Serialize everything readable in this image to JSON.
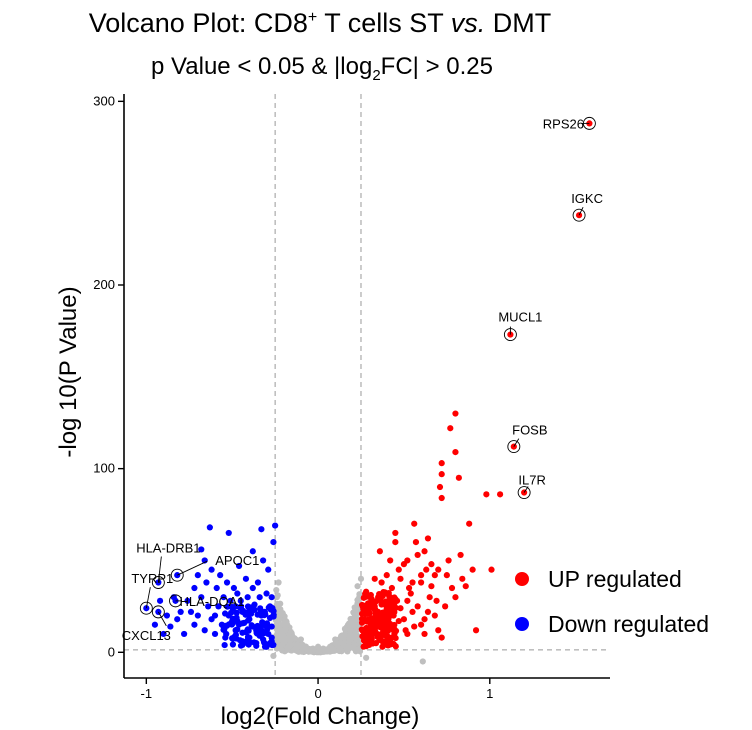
{
  "chart_data": {
    "type": "scatter",
    "title_pre": "Volcano Plot: CD8",
    "title_sup": "+",
    "title_mid": " T cells ST ",
    "title_em": "vs.",
    "title_post": " DMT",
    "subtitle_pre": "p Value  <  0.05 & |log",
    "subtitle_sub": "2",
    "subtitle_post": "FC|  >  0.25",
    "xlabel": "log2(Fold Change)",
    "ylabel": "-log 10(P Value)",
    "xlim": [
      -1.13,
      1.7
    ],
    "ylim": [
      -14,
      304
    ],
    "x_ticks": [
      -1,
      0,
      1
    ],
    "x_tick_labels": [
      "-1",
      "0",
      "1"
    ],
    "y_ticks": [
      0,
      100,
      200,
      300
    ],
    "y_tick_labels": [
      "0",
      "100",
      "200",
      "300"
    ],
    "thresholds": {
      "fc": 0.25,
      "p_log": 1.3
    },
    "colors": {
      "up": "#ff0000",
      "down": "#0000ff",
      "ns": "#bfbfbf",
      "threshold_line": "#999999"
    },
    "legend": {
      "position": "right",
      "items": [
        {
          "label": "UP regulated",
          "color": "#ff0000"
        },
        {
          "label": "Down regulated",
          "color": "#0000ff"
        }
      ]
    },
    "labeled_genes": [
      {
        "gene": "RPS26",
        "x": 1.58,
        "y": 288,
        "group": "up"
      },
      {
        "gene": "IGKC",
        "x": 1.52,
        "y": 238,
        "group": "up"
      },
      {
        "gene": "MUCL1",
        "x": 1.12,
        "y": 173,
        "group": "up"
      },
      {
        "gene": "FOSB",
        "x": 1.14,
        "y": 112,
        "group": "up"
      },
      {
        "gene": "IL7R",
        "x": 1.2,
        "y": 87,
        "group": "up"
      },
      {
        "gene": "HLA-DRB1",
        "x": -0.93,
        "y": 38,
        "group": "down"
      },
      {
        "gene": "APOC1",
        "x": -0.82,
        "y": 42,
        "group": "down"
      },
      {
        "gene": "TYRP1",
        "x": -1.0,
        "y": 24,
        "group": "down"
      },
      {
        "gene": "HLA-DQA1",
        "x": -0.83,
        "y": 28,
        "group": "down"
      },
      {
        "gene": "CXCL13",
        "x": -0.93,
        "y": 22,
        "group": "down"
      }
    ],
    "up_points": [
      [
        0.8,
        130
      ],
      [
        0.77,
        122
      ],
      [
        0.8,
        109
      ],
      [
        0.72,
        103
      ],
      [
        0.82,
        95
      ],
      [
        0.72,
        97
      ],
      [
        0.71,
        90
      ],
      [
        0.72,
        84
      ],
      [
        1.06,
        86
      ],
      [
        0.98,
        86
      ],
      [
        0.88,
        70
      ],
      [
        1.01,
        45
      ],
      [
        0.83,
        53
      ],
      [
        0.7,
        45
      ],
      [
        0.68,
        42
      ],
      [
        0.62,
        55
      ],
      [
        0.57,
        60
      ],
      [
        0.55,
        38
      ],
      [
        0.5,
        48
      ],
      [
        0.47,
        45
      ],
      [
        0.45,
        65
      ],
      [
        0.56,
        70
      ],
      [
        0.45,
        60
      ],
      [
        0.58,
        53
      ],
      [
        0.63,
        45
      ],
      [
        0.66,
        36
      ],
      [
        0.75,
        42
      ],
      [
        0.65,
        30
      ],
      [
        0.6,
        38
      ],
      [
        0.52,
        28
      ],
      [
        0.48,
        24
      ],
      [
        0.43,
        35
      ],
      [
        0.4,
        42
      ],
      [
        0.37,
        38
      ],
      [
        0.35,
        30
      ],
      [
        0.33,
        25
      ],
      [
        0.3,
        18
      ],
      [
        0.28,
        13
      ],
      [
        0.27,
        8
      ],
      [
        0.29,
        23
      ],
      [
        0.32,
        10
      ],
      [
        0.38,
        20
      ],
      [
        0.41,
        15
      ],
      [
        0.44,
        12
      ],
      [
        0.5,
        18
      ],
      [
        0.55,
        22
      ],
      [
        0.6,
        15
      ],
      [
        0.7,
        12
      ],
      [
        0.72,
        8
      ],
      [
        0.78,
        35
      ],
      [
        0.69,
        28
      ],
      [
        0.64,
        22
      ],
      [
        0.54,
        32
      ],
      [
        0.46,
        28
      ],
      [
        0.42,
        50
      ],
      [
        0.38,
        10
      ],
      [
        0.34,
        15
      ],
      [
        0.31,
        28
      ],
      [
        0.28,
        33
      ],
      [
        0.26,
        12
      ],
      [
        0.27,
        18
      ],
      [
        0.3,
        6
      ],
      [
        0.36,
        8
      ],
      [
        0.52,
        10
      ],
      [
        0.58,
        25
      ],
      [
        0.62,
        18
      ],
      [
        0.68,
        20
      ],
      [
        0.74,
        25
      ],
      [
        0.8,
        30
      ],
      [
        0.84,
        40
      ],
      [
        0.9,
        45
      ],
      [
        0.36,
        55
      ],
      [
        0.4,
        32
      ],
      [
        0.48,
        40
      ],
      [
        0.44,
        20
      ],
      [
        0.33,
        40
      ],
      [
        0.29,
        9
      ],
      [
        0.26,
        25
      ],
      [
        0.31,
        14
      ],
      [
        0.35,
        22
      ],
      [
        0.39,
        26
      ],
      [
        0.43,
        8
      ],
      [
        0.51,
        12
      ],
      [
        0.56,
        14
      ],
      [
        0.62,
        10
      ],
      [
        0.47,
        17
      ],
      [
        0.53,
        35
      ],
      [
        0.6,
        42
      ],
      [
        0.66,
        48
      ],
      [
        0.76,
        50
      ],
      [
        0.86,
        36
      ],
      [
        0.92,
        12
      ],
      [
        0.64,
        62
      ],
      [
        0.52,
        50
      ],
      [
        0.4,
        24
      ],
      [
        0.37,
        16
      ]
    ],
    "down_points": [
      [
        -0.63,
        68
      ],
      [
        -0.52,
        65
      ],
      [
        -0.33,
        67
      ],
      [
        -0.25,
        69
      ],
      [
        -0.26,
        60
      ],
      [
        -0.32,
        50
      ],
      [
        -0.38,
        55
      ],
      [
        -0.68,
        56
      ],
      [
        -0.66,
        50
      ],
      [
        -0.62,
        45
      ],
      [
        -0.57,
        42
      ],
      [
        -0.53,
        38
      ],
      [
        -0.49,
        35
      ],
      [
        -0.46,
        47
      ],
      [
        -0.42,
        40
      ],
      [
        -0.38,
        35
      ],
      [
        -0.34,
        30
      ],
      [
        -0.3,
        32
      ],
      [
        -0.28,
        25
      ],
      [
        -0.26,
        20
      ],
      [
        -0.27,
        14
      ],
      [
        -0.29,
        10
      ],
      [
        -0.31,
        15
      ],
      [
        -0.33,
        20
      ],
      [
        -0.36,
        12
      ],
      [
        -0.4,
        18
      ],
      [
        -0.44,
        22
      ],
      [
        -0.48,
        25
      ],
      [
        -0.52,
        20
      ],
      [
        -0.56,
        15
      ],
      [
        -0.6,
        20
      ],
      [
        -0.64,
        25
      ],
      [
        -0.68,
        30
      ],
      [
        -0.72,
        35
      ],
      [
        -0.76,
        28
      ],
      [
        -0.8,
        22
      ],
      [
        -0.84,
        30
      ],
      [
        -0.88,
        20
      ],
      [
        -0.92,
        28
      ],
      [
        -0.86,
        14
      ],
      [
        -0.78,
        10
      ],
      [
        -0.72,
        15
      ],
      [
        -0.66,
        12
      ],
      [
        -0.6,
        10
      ],
      [
        -0.54,
        8
      ],
      [
        -0.48,
        12
      ],
      [
        -0.44,
        6
      ],
      [
        -0.4,
        8
      ],
      [
        -0.36,
        5
      ],
      [
        -0.32,
        7
      ],
      [
        -0.28,
        5
      ],
      [
        -0.26,
        4
      ],
      [
        -0.3,
        3
      ],
      [
        -0.34,
        9
      ],
      [
        -0.38,
        14
      ],
      [
        -0.42,
        11
      ],
      [
        -0.46,
        15
      ],
      [
        -0.5,
        17
      ],
      [
        -0.58,
        25
      ],
      [
        -0.62,
        18
      ],
      [
        -0.7,
        20
      ],
      [
        -0.74,
        22
      ],
      [
        -0.82,
        18
      ],
      [
        -0.9,
        10
      ],
      [
        -0.95,
        15
      ],
      [
        -0.55,
        30
      ],
      [
        -0.45,
        28
      ],
      [
        -0.35,
        38
      ],
      [
        -0.29,
        45
      ],
      [
        -0.27,
        30
      ],
      [
        -0.31,
        22
      ],
      [
        -0.37,
        26
      ],
      [
        -0.41,
        30
      ],
      [
        -0.47,
        32
      ],
      [
        -0.51,
        28
      ],
      [
        -0.59,
        35
      ],
      [
        -0.65,
        38
      ],
      [
        -0.7,
        42
      ],
      [
        -0.43,
        16
      ],
      [
        -0.39,
        21
      ],
      [
        -0.33,
        12
      ],
      [
        -0.27,
        8
      ]
    ],
    "ns_points": [
      [
        -0.24,
        30
      ],
      [
        -0.24,
        22
      ],
      [
        -0.23,
        15
      ],
      [
        -0.22,
        10
      ],
      [
        -0.2,
        8
      ],
      [
        -0.18,
        6
      ],
      [
        -0.16,
        5
      ],
      [
        -0.14,
        4
      ],
      [
        -0.12,
        3
      ],
      [
        -0.1,
        2.5
      ],
      [
        -0.08,
        2
      ],
      [
        -0.06,
        1.8
      ],
      [
        -0.04,
        1.5
      ],
      [
        -0.02,
        1.2
      ],
      [
        0.0,
        1
      ],
      [
        0.02,
        1.2
      ],
      [
        0.04,
        1.5
      ],
      [
        0.06,
        1.8
      ],
      [
        0.08,
        2
      ],
      [
        0.1,
        2.5
      ],
      [
        0.12,
        3
      ],
      [
        0.14,
        4
      ],
      [
        0.16,
        5
      ],
      [
        0.18,
        6
      ],
      [
        0.2,
        8
      ],
      [
        0.22,
        12
      ],
      [
        0.23,
        18
      ],
      [
        0.24,
        25
      ],
      [
        0.24,
        30
      ],
      [
        -0.21,
        4
      ],
      [
        -0.17,
        3
      ],
      [
        -0.13,
        2
      ],
      [
        -0.09,
        1.5
      ],
      [
        -0.05,
        1
      ],
      [
        0.05,
        1
      ],
      [
        0.09,
        1.5
      ],
      [
        0.13,
        2
      ],
      [
        0.17,
        3
      ],
      [
        0.21,
        4
      ],
      [
        -0.19,
        12
      ],
      [
        0.19,
        12
      ],
      [
        -0.15,
        8
      ],
      [
        0.15,
        8
      ],
      [
        -0.11,
        5
      ],
      [
        0.11,
        5
      ],
      [
        -0.07,
        3
      ],
      [
        0.07,
        3
      ],
      [
        -0.03,
        2
      ],
      [
        0.03,
        2
      ],
      [
        0.0,
        3
      ],
      [
        -0.22,
        20
      ],
      [
        0.22,
        20
      ],
      [
        -0.1,
        7
      ],
      [
        0.1,
        7
      ],
      [
        -0.18,
        2
      ],
      [
        0.18,
        2
      ],
      [
        0.01,
        0.5
      ],
      [
        -0.24,
        2
      ],
      [
        0.24,
        2
      ],
      [
        0.23,
        36
      ],
      [
        -0.23,
        38
      ],
      [
        0.2,
        15
      ],
      [
        -0.2,
        15
      ],
      [
        0.25,
        40
      ],
      [
        0.61,
        -5
      ],
      [
        0.28,
        -3
      ],
      [
        -0.26,
        -2
      ]
    ]
  }
}
